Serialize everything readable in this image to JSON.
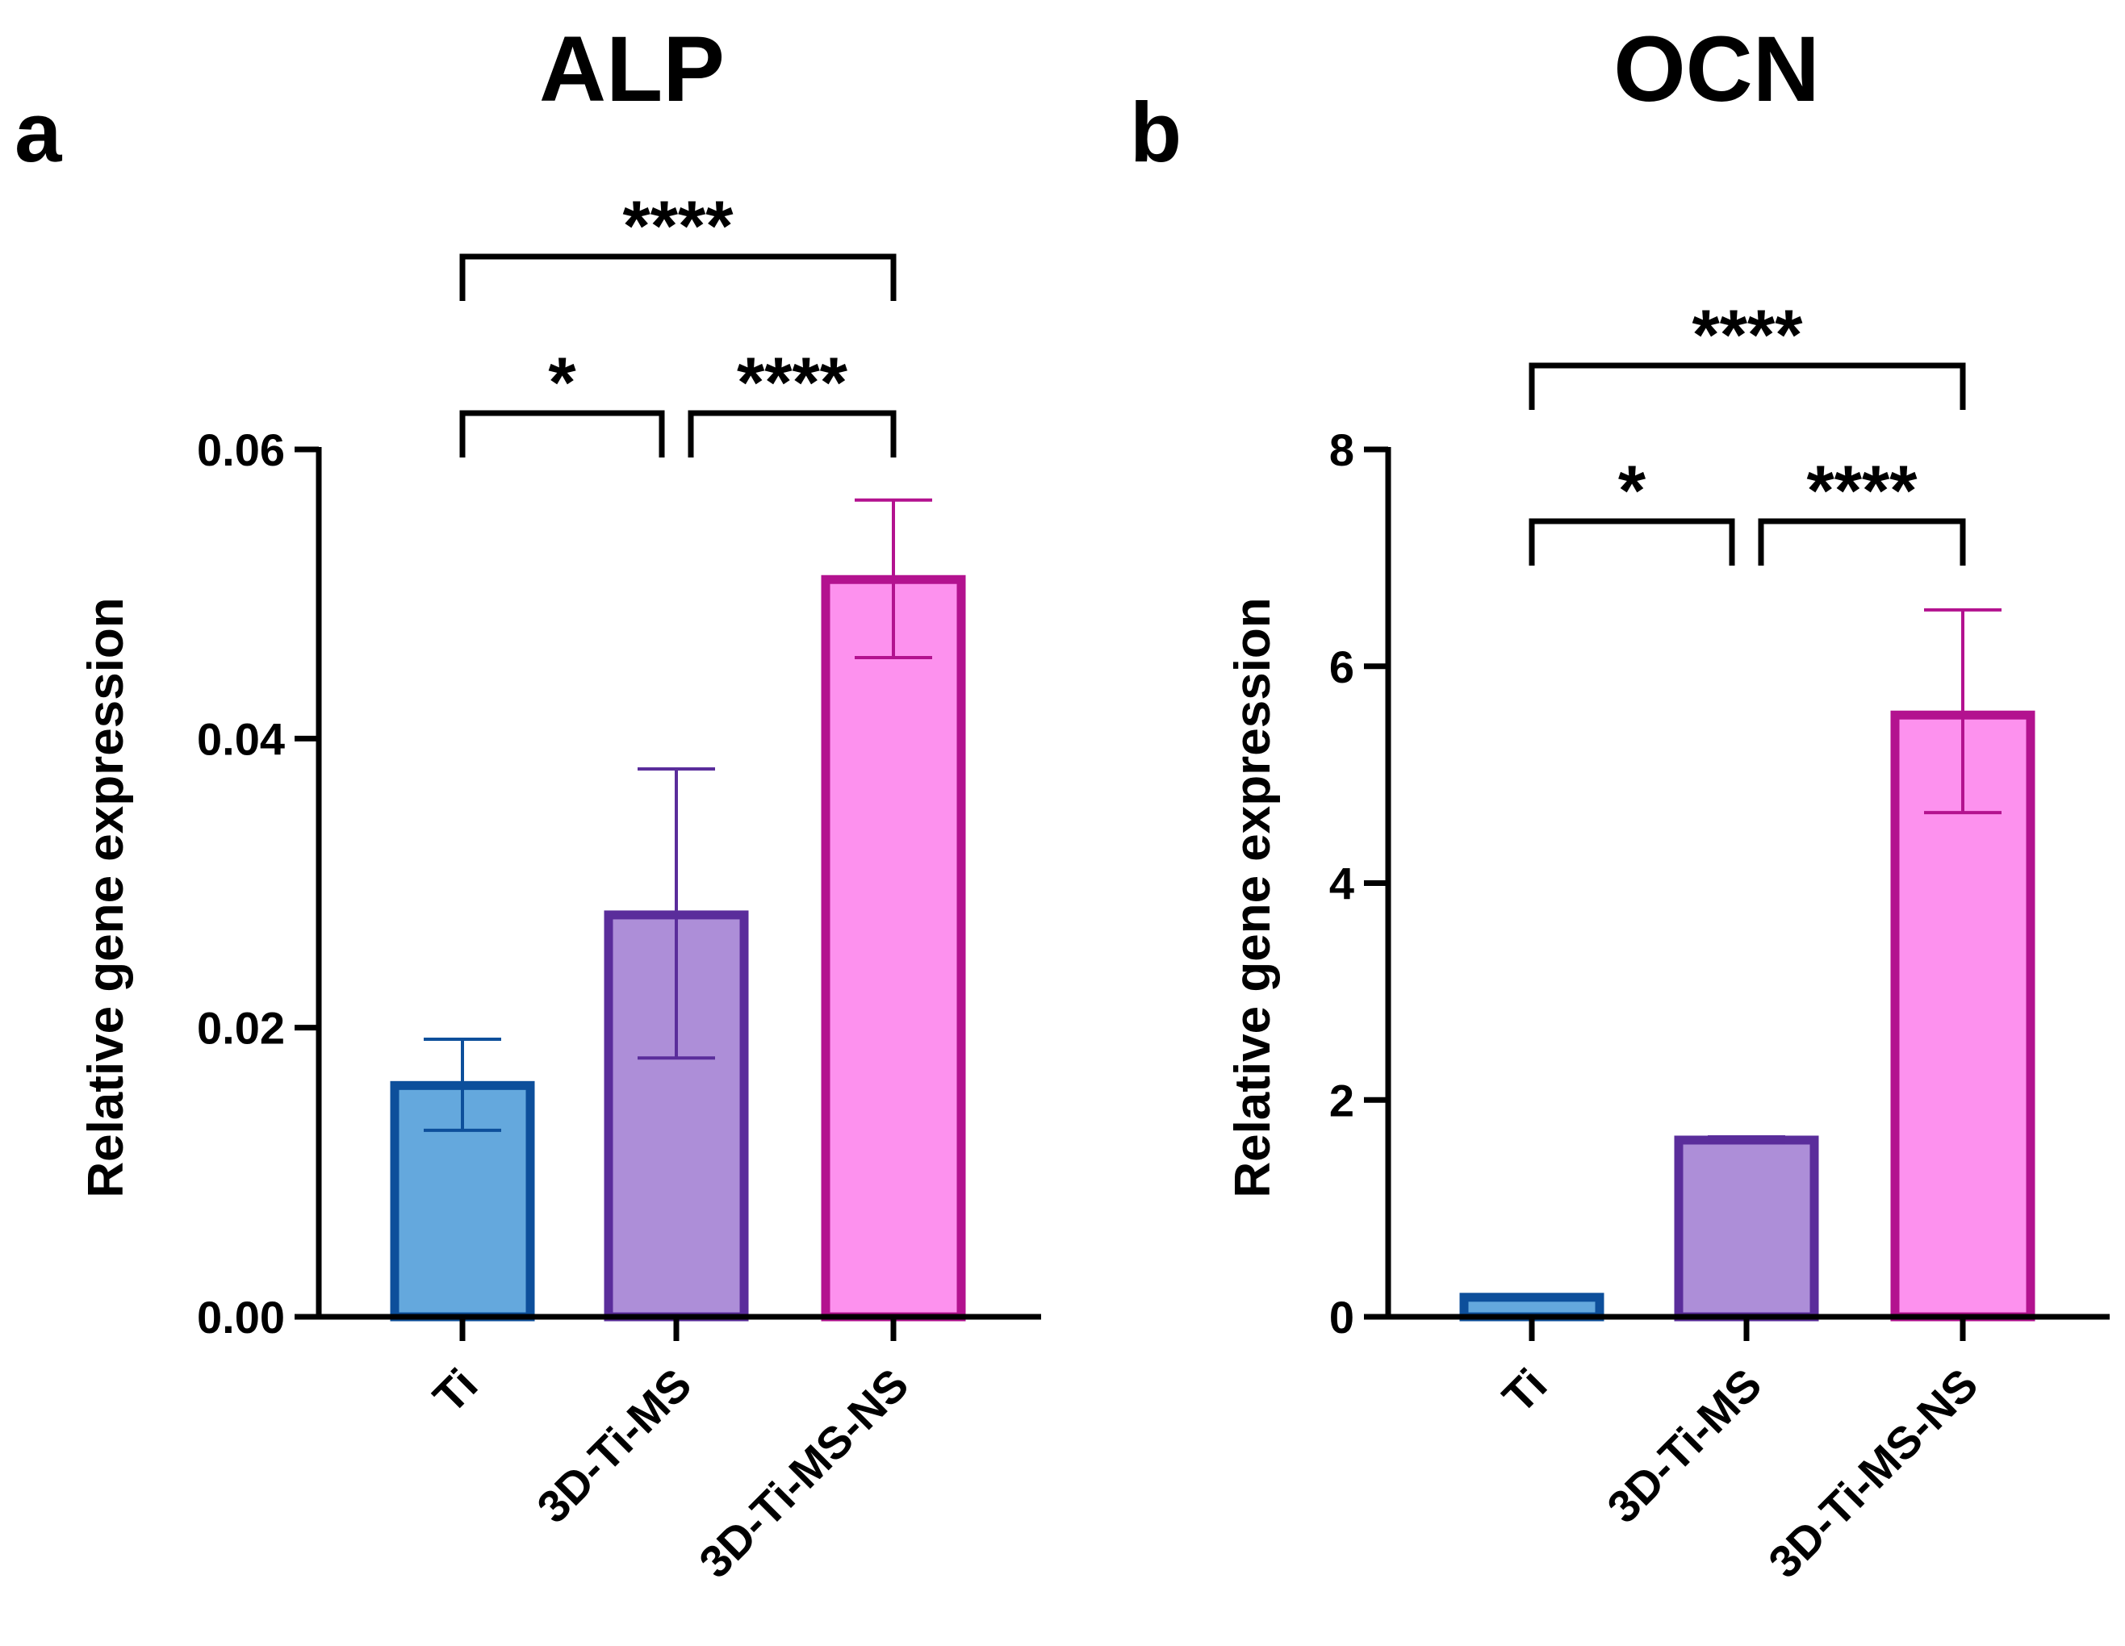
{
  "chart_data": [
    {
      "type": "bar",
      "panel": "a",
      "title": "ALP",
      "ylabel": "Relative gene expression",
      "xlabel": "",
      "ylim": [
        0,
        0.06
      ],
      "yticks": [
        0,
        0.02,
        0.04,
        0.06
      ],
      "ytick_labels": [
        "0.00",
        "0.02",
        "0.04",
        "0.06"
      ],
      "categories": [
        "Ti",
        "3D-Ti-MS",
        "3D-Ti-MS-NS"
      ],
      "values": [
        0.016,
        0.0278,
        0.051
      ],
      "errors_low": [
        0.0129,
        0.0179,
        0.0456
      ],
      "errors_high": [
        0.0192,
        0.0379,
        0.0565
      ],
      "colors": {
        "fill": [
          "#64a8dd",
          "#ad8ed8",
          "#fd91ee"
        ],
        "stroke": [
          "#0d4f9b",
          "#5a2d9b",
          "#b3128f"
        ]
      },
      "significance": [
        {
          "from": 0,
          "to": 1,
          "label": "*",
          "level": 1
        },
        {
          "from": 1,
          "to": 2,
          "label": "****",
          "level": 1
        },
        {
          "from": 0,
          "to": 2,
          "label": "****",
          "level": 2
        }
      ]
    },
    {
      "type": "bar",
      "panel": "b",
      "title": "OCN",
      "ylabel": "Relative gene expression",
      "xlabel": "",
      "ylim": [
        0,
        8
      ],
      "yticks": [
        0,
        2,
        4,
        6,
        8
      ],
      "ytick_labels": [
        "0",
        "2",
        "4",
        "6",
        "8"
      ],
      "categories": [
        "Ti",
        "3D-Ti-MS",
        "3D-Ti-MS-NS"
      ],
      "values": [
        0.18,
        1.63,
        5.55
      ],
      "errors_low": [
        0.16,
        1.62,
        4.65
      ],
      "errors_high": [
        0.2,
        1.66,
        6.52
      ],
      "colors": {
        "fill": [
          "#64a8dd",
          "#ad8ed8",
          "#fd91ee"
        ],
        "stroke": [
          "#0d4f9b",
          "#5a2d9b",
          "#b3128f"
        ]
      },
      "significance": [
        {
          "from": 0,
          "to": 1,
          "label": "*",
          "level": 1
        },
        {
          "from": 1,
          "to": 2,
          "label": "****",
          "level": 1
        },
        {
          "from": 0,
          "to": 2,
          "label": "****",
          "level": 2
        }
      ]
    }
  ]
}
